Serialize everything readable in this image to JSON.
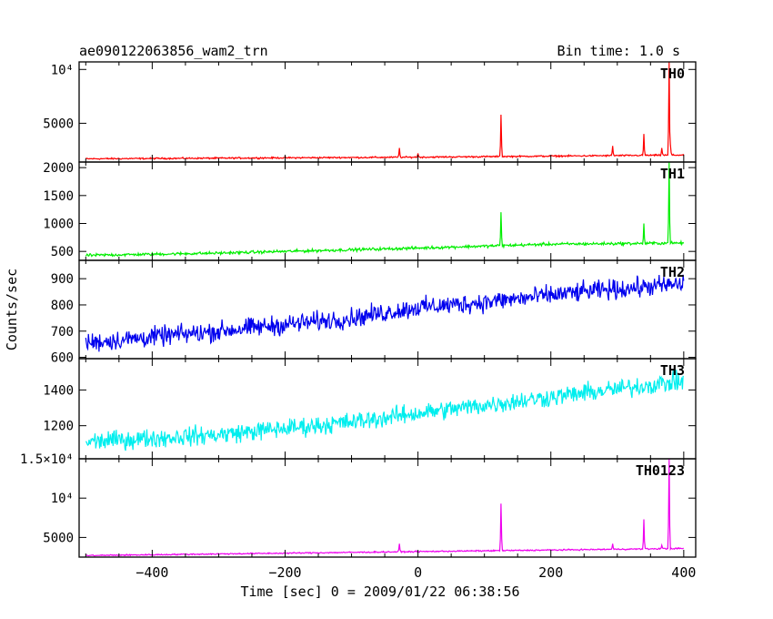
{
  "header": {
    "title": "ae090122063856_wam2_trn",
    "bin_time": "Bin time: 1.0 s"
  },
  "axes": {
    "xlabel": "Time [sec] 0 = 2009/01/22 06:38:56",
    "ylabel": "Counts/sec",
    "x_ticks": [
      -400,
      -200,
      0,
      200,
      400
    ],
    "x_tick_labels": [
      "−400",
      "−200",
      "0",
      "200",
      "400"
    ]
  },
  "chart_data": [
    {
      "type": "line",
      "name": "TH0",
      "color": "#ff0000",
      "xlim": [
        -510,
        418
      ],
      "ylim": [
        1400,
        10700
      ],
      "y_ticks": [
        5000,
        10000
      ],
      "y_tick_labels": [
        "5000",
        "10⁴"
      ],
      "baseline": [
        [
          -500,
          1700
        ],
        [
          0,
          1850
        ],
        [
          400,
          2050
        ]
      ],
      "noise": 60,
      "spikes": [
        [
          -28,
          2700
        ],
        [
          0,
          2200
        ],
        [
          125,
          5800
        ],
        [
          293,
          2900
        ],
        [
          340,
          4000
        ],
        [
          367,
          2700
        ],
        [
          378,
          10700
        ],
        [
          380,
          3000
        ]
      ]
    },
    {
      "type": "line",
      "name": "TH1",
      "color": "#00ee00",
      "xlim": [
        -510,
        418
      ],
      "ylim": [
        340,
        2100
      ],
      "y_ticks": [
        500,
        1000,
        1500,
        2000
      ],
      "y_tick_labels": [
        "500",
        "1000",
        "1500",
        "2000"
      ],
      "baseline": [
        [
          -500,
          430
        ],
        [
          -300,
          470
        ],
        [
          0,
          560
        ],
        [
          200,
          630
        ],
        [
          400,
          650
        ]
      ],
      "noise": 22,
      "spikes": [
        [
          125,
          1200
        ],
        [
          340,
          1000
        ],
        [
          378,
          2100
        ]
      ]
    },
    {
      "type": "line",
      "name": "TH2",
      "color": "#0000ee",
      "xlim": [
        -510,
        418
      ],
      "ylim": [
        595,
        970
      ],
      "y_ticks": [
        600,
        700,
        800,
        900
      ],
      "y_tick_labels": [
        "600",
        "700",
        "800",
        "900"
      ],
      "baseline": [
        [
          -500,
          655
        ],
        [
          -300,
          700
        ],
        [
          -100,
          750
        ],
        [
          0,
          790
        ],
        [
          100,
          810
        ],
        [
          250,
          850
        ],
        [
          400,
          880
        ]
      ],
      "noise": 32,
      "spikes": []
    },
    {
      "type": "line",
      "name": "TH3",
      "color": "#00eeee",
      "xlim": [
        -510,
        418
      ],
      "ylim": [
        1015,
        1575
      ],
      "y_ticks": [
        1200,
        1400
      ],
      "y_tick_labels": [
        "1200",
        "1400"
      ],
      "baseline": [
        [
          -500,
          1110
        ],
        [
          -300,
          1150
        ],
        [
          -100,
          1220
        ],
        [
          0,
          1270
        ],
        [
          200,
          1360
        ],
        [
          400,
          1450
        ]
      ],
      "noise": 45,
      "spikes": []
    },
    {
      "type": "line",
      "name": "TH0123",
      "color": "#ee00ee",
      "xlim": [
        -510,
        418
      ],
      "ylim": [
        2500,
        15000
      ],
      "y_ticks": [
        5000,
        10000,
        15000
      ],
      "y_tick_labels": [
        "5000",
        "10⁴",
        "1.5×10⁴"
      ],
      "baseline": [
        [
          -500,
          2700
        ],
        [
          0,
          3200
        ],
        [
          400,
          3600
        ]
      ],
      "noise": 70,
      "spikes": [
        [
          -28,
          4200
        ],
        [
          125,
          9300
        ],
        [
          293,
          4200
        ],
        [
          340,
          7300
        ],
        [
          367,
          4000
        ],
        [
          378,
          15000
        ]
      ]
    }
  ]
}
